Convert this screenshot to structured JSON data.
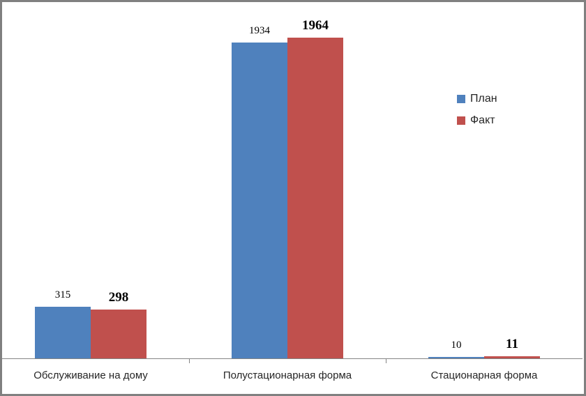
{
  "chart_data": {
    "type": "bar",
    "categories": [
      "Обслуживание на дому",
      "Полустационарная форма",
      "Стационарная форма"
    ],
    "series": [
      {
        "name": "План",
        "color": "#4F81BD",
        "values": [
          315,
          1934,
          10
        ]
      },
      {
        "name": "Факт",
        "color": "#C0504D",
        "values": [
          298,
          1964,
          11
        ]
      }
    ],
    "title": "",
    "xlabel": "",
    "ylabel": "",
    "ylim": [
      0,
      2135
    ],
    "grid": false,
    "legend_position": "right",
    "data_labels": "outside-end",
    "axis_color": "#848484",
    "label_color": "#262626",
    "frame_color": "#808080"
  }
}
